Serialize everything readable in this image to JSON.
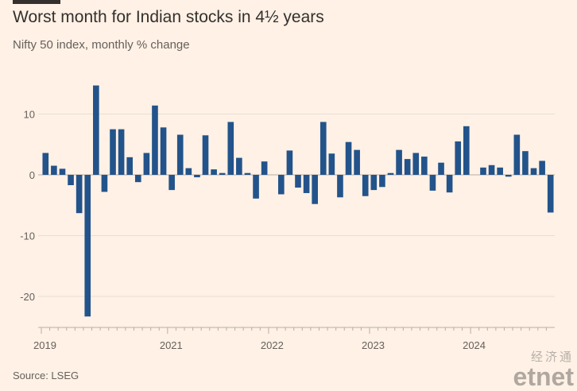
{
  "header": {
    "title": "Worst month for Indian stocks in 4½ years",
    "subtitle": "Nifty 50 index, monthly % change"
  },
  "footer": {
    "source": "Source: LSEG"
  },
  "watermark": {
    "chinese": "经济通",
    "brand": "etnet"
  },
  "colors": {
    "bar": "#23538b",
    "background": "#fff1e5",
    "grid": "#e8ddd3",
    "text": "#66605c"
  },
  "chart_data": {
    "type": "bar",
    "title": "Worst month for Indian stocks in 4½ years",
    "subtitle": "Nifty 50 index, monthly % change",
    "ylim": [
      -25,
      16
    ],
    "yticks": [
      10,
      0,
      -10,
      -20
    ],
    "ytick_labels": [
      "10",
      "0",
      "-10",
      "-20"
    ],
    "xtick_labels": [
      {
        "label": "2019",
        "index": 0
      },
      {
        "label": "2021",
        "index": 15
      },
      {
        "label": "2022",
        "index": 27
      },
      {
        "label": "2023",
        "index": 39
      },
      {
        "label": "2024",
        "index": 51
      }
    ],
    "grid": true,
    "values": [
      3.6,
      1.5,
      1.0,
      -1.7,
      -6.3,
      -23.3,
      14.7,
      -2.8,
      7.5,
      7.5,
      2.9,
      -1.2,
      3.6,
      11.4,
      7.8,
      -2.5,
      6.6,
      1.1,
      -0.4,
      6.5,
      0.9,
      0.3,
      8.7,
      2.8,
      0.3,
      -3.9,
      2.2,
      0.0,
      -3.2,
      4.0,
      -2.1,
      -3.0,
      -4.8,
      8.7,
      3.5,
      -3.7,
      5.4,
      4.1,
      -3.5,
      -2.5,
      -2.0,
      0.3,
      4.1,
      2.6,
      3.6,
      3.0,
      -2.6,
      2.0,
      -2.9,
      5.5,
      8.0,
      0.0,
      1.2,
      1.6,
      1.2,
      -0.3,
      6.6,
      3.9,
      1.1,
      2.3,
      -6.2
    ]
  }
}
